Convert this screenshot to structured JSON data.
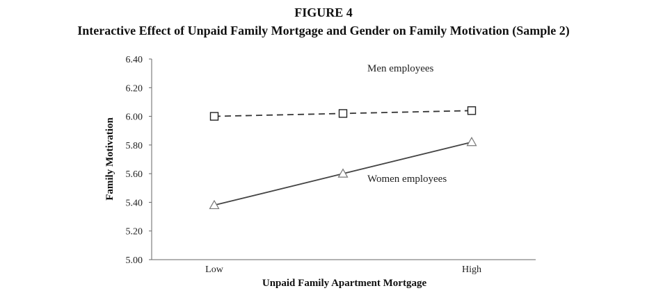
{
  "figure": {
    "label": "FIGURE 4",
    "title": "Interactive Effect of Unpaid Family Mortgage and Gender on Family Motivation (Sample 2)"
  },
  "chart_data": {
    "type": "line",
    "categories": [
      "Low",
      "",
      "High"
    ],
    "x_tick_labels": [
      "Low",
      "High"
    ],
    "xlabel": "Unpaid Family Apartment Mortgage",
    "ylabel": "Family Motivation",
    "ylim": [
      5.0,
      6.4
    ],
    "y_ticks": [
      "5.00",
      "5.20",
      "5.40",
      "5.60",
      "5.80",
      "6.00",
      "6.20",
      "6.40"
    ],
    "grid": false,
    "series": [
      {
        "name": "Men employees",
        "values": [
          6.0,
          6.02,
          6.04
        ],
        "marker": "square",
        "line_style": "dashed",
        "color": "#333333"
      },
      {
        "name": "Women employees",
        "values": [
          5.38,
          5.6,
          5.82
        ],
        "marker": "triangle",
        "line_style": "solid",
        "color": "#444444"
      }
    ]
  }
}
